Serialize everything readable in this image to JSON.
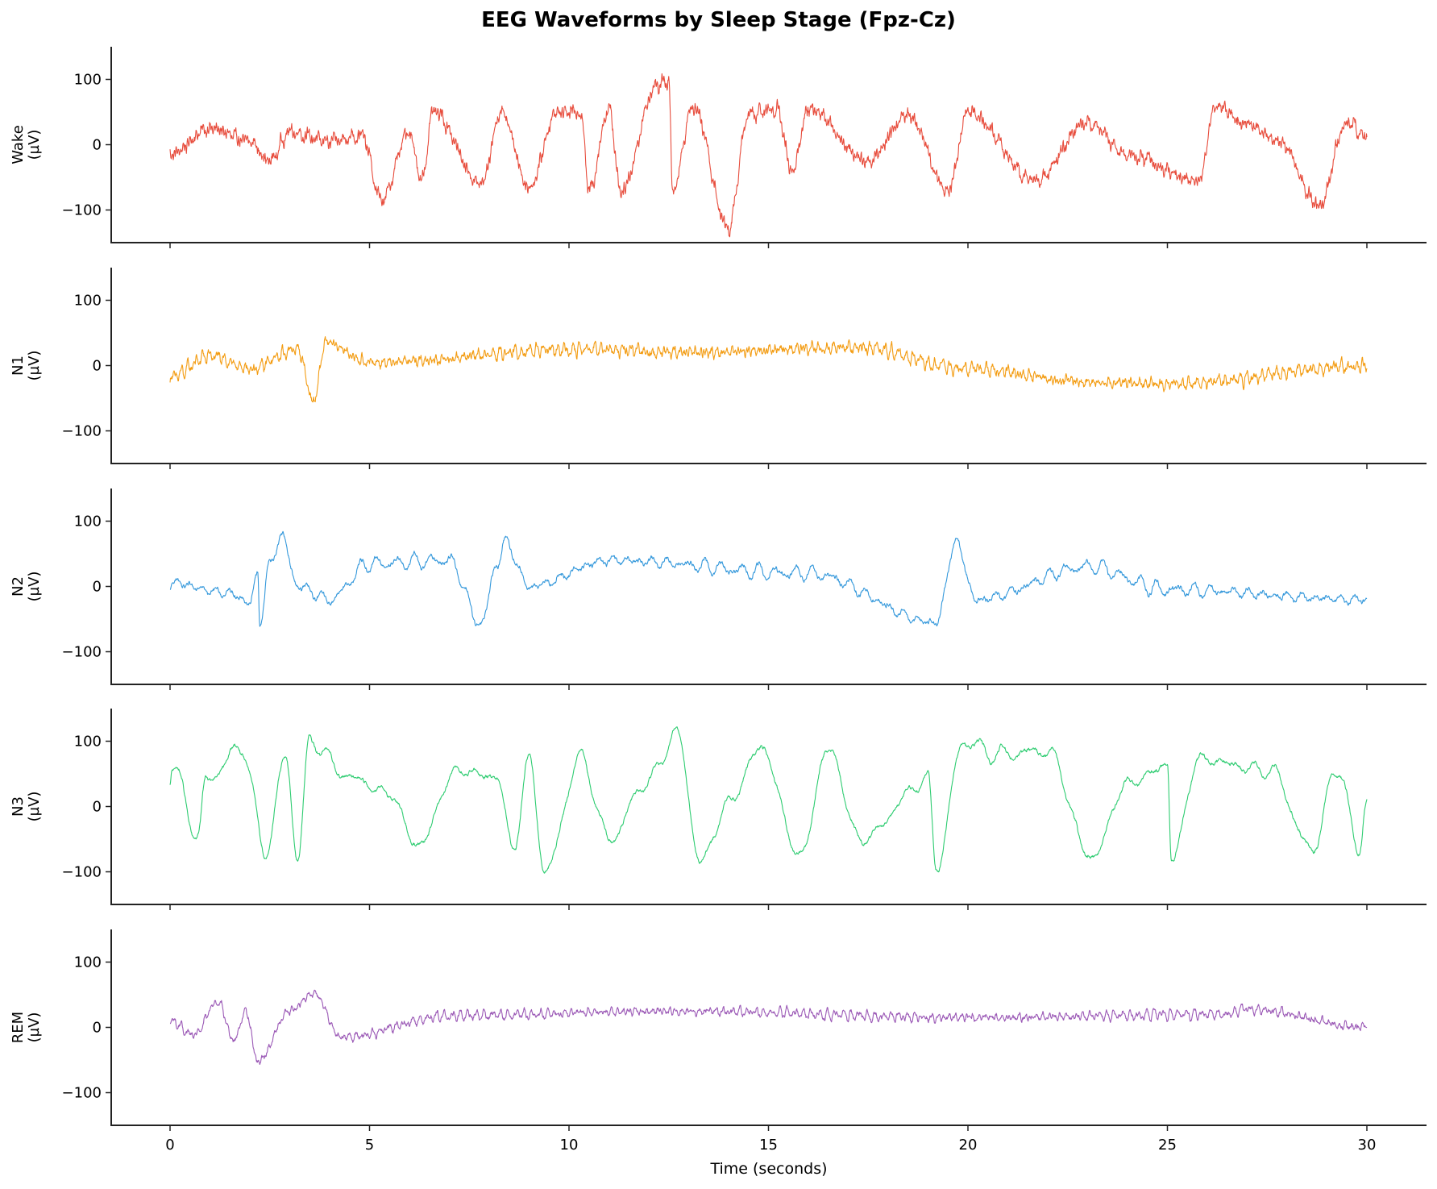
{
  "figure": {
    "title": "EEG Waveforms by Sleep Stage (Fpz-Cz)",
    "xlabel": "Time (seconds)"
  },
  "chart_data": {
    "type": "line",
    "title": "EEG Waveforms by Sleep Stage (Fpz-Cz)",
    "xlabel": "Time (seconds)",
    "x_range": [
      0,
      30
    ],
    "xlim": [
      -1.5,
      31.5
    ],
    "xticks": [
      0,
      5,
      10,
      15,
      20,
      25,
      30
    ],
    "yticks": [
      -100,
      0,
      100
    ],
    "ylim": [
      -150,
      150
    ],
    "grid": false,
    "legend": null,
    "shared_x": true,
    "panels": [
      {
        "name": "Wake",
        "ylabel": "Wake\n(µV)",
        "color": "#e74c3c",
        "description": "High-amplitude irregular activity with large slow deflections (eye movements/artifacts) and fast noise",
        "approx_range": [
          -127,
          98
        ],
        "key_points": [
          {
            "t": 0.0,
            "v": -15
          },
          {
            "t": 1.0,
            "v": 25
          },
          {
            "t": 2.0,
            "v": 5
          },
          {
            "t": 2.5,
            "v": -25
          },
          {
            "t": 3.0,
            "v": 20
          },
          {
            "t": 4.0,
            "v": 5
          },
          {
            "t": 4.8,
            "v": 15
          },
          {
            "t": 5.3,
            "v": -85
          },
          {
            "t": 6.0,
            "v": 20
          },
          {
            "t": 6.3,
            "v": -55
          },
          {
            "t": 6.6,
            "v": 50
          },
          {
            "t": 7.8,
            "v": -60
          },
          {
            "t": 8.3,
            "v": 50
          },
          {
            "t": 9.0,
            "v": -65
          },
          {
            "t": 9.7,
            "v": 50
          },
          {
            "t": 10.3,
            "v": 50
          },
          {
            "t": 10.5,
            "v": -70
          },
          {
            "t": 11.0,
            "v": 55
          },
          {
            "t": 11.3,
            "v": -70
          },
          {
            "t": 12.2,
            "v": 90
          },
          {
            "t": 12.5,
            "v": 98
          },
          {
            "t": 12.6,
            "v": -70
          },
          {
            "t": 13.1,
            "v": 60
          },
          {
            "t": 14.0,
            "v": -127
          },
          {
            "t": 14.5,
            "v": 45
          },
          {
            "t": 15.2,
            "v": 55
          },
          {
            "t": 15.6,
            "v": -40
          },
          {
            "t": 16.0,
            "v": 55
          },
          {
            "t": 17.5,
            "v": -25
          },
          {
            "t": 18.5,
            "v": 45
          },
          {
            "t": 19.5,
            "v": -70
          },
          {
            "t": 20.0,
            "v": 50
          },
          {
            "t": 21.7,
            "v": -55
          },
          {
            "t": 23.0,
            "v": 35
          },
          {
            "t": 24.0,
            "v": -15
          },
          {
            "t": 25.8,
            "v": -55
          },
          {
            "t": 26.2,
            "v": 60
          },
          {
            "t": 27.0,
            "v": 30
          },
          {
            "t": 27.8,
            "v": 5
          },
          {
            "t": 28.8,
            "v": -92
          },
          {
            "t": 29.5,
            "v": 35
          },
          {
            "t": 30.0,
            "v": 10
          }
        ]
      },
      {
        "name": "N1",
        "ylabel": "N1\n(µV)",
        "color": "#f39c12",
        "description": "Low-amplitude mixed-frequency theta activity centered on 0",
        "approx_range": [
          -55,
          35
        ],
        "key_points": [
          {
            "t": 0.0,
            "v": -18
          },
          {
            "t": 1.0,
            "v": 15
          },
          {
            "t": 2.0,
            "v": -5
          },
          {
            "t": 3.2,
            "v": 25
          },
          {
            "t": 3.6,
            "v": -55
          },
          {
            "t": 3.9,
            "v": 35
          },
          {
            "t": 5.0,
            "v": 5
          },
          {
            "t": 10.3,
            "v": 25
          },
          {
            "t": 13.0,
            "v": 20
          },
          {
            "t": 17.2,
            "v": 28
          },
          {
            "t": 20.0,
            "v": -5
          },
          {
            "t": 23.0,
            "v": -25
          },
          {
            "t": 25.0,
            "v": -28
          },
          {
            "t": 30.0,
            "v": 0
          }
        ]
      },
      {
        "name": "N2",
        "ylabel": "N2\n(µV)",
        "color": "#3498db",
        "description": "Moderate activity with K-complexes (sharp biphasic waves)",
        "approx_range": [
          -58,
          78
        ],
        "key_points": [
          {
            "t": 0.0,
            "v": 5
          },
          {
            "t": 1.5,
            "v": -10
          },
          {
            "t": 2.0,
            "v": -25
          },
          {
            "t": 2.2,
            "v": 20
          },
          {
            "t": 2.25,
            "v": -55
          },
          {
            "t": 2.5,
            "v": 35
          },
          {
            "t": 2.8,
            "v": 78
          },
          {
            "t": 3.2,
            "v": 0
          },
          {
            "t": 4.0,
            "v": -20
          },
          {
            "t": 5.0,
            "v": 35
          },
          {
            "t": 7.0,
            "v": 40
          },
          {
            "t": 7.8,
            "v": -58
          },
          {
            "t": 8.2,
            "v": 35
          },
          {
            "t": 8.4,
            "v": 68
          },
          {
            "t": 9.0,
            "v": 0
          },
          {
            "t": 11.0,
            "v": 40
          },
          {
            "t": 16.0,
            "v": 20
          },
          {
            "t": 19.2,
            "v": -55
          },
          {
            "t": 19.7,
            "v": 68
          },
          {
            "t": 20.2,
            "v": -20
          },
          {
            "t": 23.0,
            "v": 30
          },
          {
            "t": 25.0,
            "v": -5
          },
          {
            "t": 30.0,
            "v": -20
          }
        ]
      },
      {
        "name": "N3",
        "ylabel": "N3\n(µV)",
        "color": "#2ecc71",
        "description": "High-amplitude slow delta waves (~0.5-2 Hz)",
        "approx_range": [
          -100,
          113
        ],
        "key_points": [
          {
            "t": 0.0,
            "v": 40
          },
          {
            "t": 0.05,
            "v": 65
          },
          {
            "t": 0.7,
            "v": -45
          },
          {
            "t": 0.9,
            "v": 40
          },
          {
            "t": 1.8,
            "v": 90
          },
          {
            "t": 2.4,
            "v": -68
          },
          {
            "t": 2.9,
            "v": 75
          },
          {
            "t": 3.2,
            "v": -78
          },
          {
            "t": 3.5,
            "v": 100
          },
          {
            "t": 4.5,
            "v": 45
          },
          {
            "t": 5.5,
            "v": 20
          },
          {
            "t": 6.2,
            "v": -60
          },
          {
            "t": 7.2,
            "v": 55
          },
          {
            "t": 8.2,
            "v": 45
          },
          {
            "t": 8.6,
            "v": -65
          },
          {
            "t": 9.0,
            "v": 70
          },
          {
            "t": 9.4,
            "v": -100
          },
          {
            "t": 10.3,
            "v": 75
          },
          {
            "t": 11.0,
            "v": -50
          },
          {
            "t": 12.0,
            "v": 40
          },
          {
            "t": 12.7,
            "v": 113
          },
          {
            "t": 13.3,
            "v": -85
          },
          {
            "t": 14.0,
            "v": 5
          },
          {
            "t": 14.8,
            "v": 90
          },
          {
            "t": 15.8,
            "v": -75
          },
          {
            "t": 16.5,
            "v": 88
          },
          {
            "t": 17.3,
            "v": -50
          },
          {
            "t": 19.0,
            "v": 40
          },
          {
            "t": 19.2,
            "v": -90
          },
          {
            "t": 19.9,
            "v": 100
          },
          {
            "t": 20.7,
            "v": 80
          },
          {
            "t": 22.0,
            "v": 85
          },
          {
            "t": 23.1,
            "v": -78
          },
          {
            "t": 24.0,
            "v": 35
          },
          {
            "t": 25.0,
            "v": 62
          },
          {
            "t": 25.1,
            "v": -80
          },
          {
            "t": 25.8,
            "v": 72
          },
          {
            "t": 27.6,
            "v": 55
          },
          {
            "t": 28.6,
            "v": -65
          },
          {
            "t": 29.3,
            "v": 60
          },
          {
            "t": 29.8,
            "v": -72
          },
          {
            "t": 30.0,
            "v": 15
          }
        ]
      },
      {
        "name": "REM",
        "ylabel": "REM\n(µV)",
        "color": "#9b59b6",
        "description": "Low-amplitude mixed-frequency activity with early sawtooth deflections",
        "approx_range": [
          -52,
          53
        ],
        "key_points": [
          {
            "t": 0.0,
            "v": 10
          },
          {
            "t": 0.6,
            "v": -12
          },
          {
            "t": 1.2,
            "v": 40
          },
          {
            "t": 1.6,
            "v": -20
          },
          {
            "t": 1.9,
            "v": 25
          },
          {
            "t": 2.2,
            "v": -52
          },
          {
            "t": 3.0,
            "v": 25
          },
          {
            "t": 3.6,
            "v": 53
          },
          {
            "t": 4.3,
            "v": -15
          },
          {
            "t": 7.0,
            "v": 18
          },
          {
            "t": 12.5,
            "v": 25
          },
          {
            "t": 20.0,
            "v": 15
          },
          {
            "t": 26.4,
            "v": 20
          },
          {
            "t": 27.0,
            "v": 28
          },
          {
            "t": 30.0,
            "v": 0
          }
        ]
      }
    ]
  }
}
